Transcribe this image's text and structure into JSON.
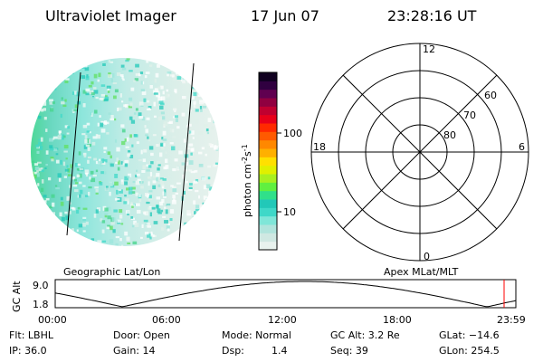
{
  "header": {
    "instrument": "Ultraviolet Imager",
    "date": "17 Jun 07",
    "time": "23:28:16 UT"
  },
  "colorbar": {
    "unit_label": "photon cm",
    "unit_sup1": "-2",
    "unit_mid": "s",
    "unit_sup2": "-1",
    "tick_high": "100",
    "tick_low": "10",
    "colors": [
      "#e8f2ee",
      "#cfe8e2",
      "#b0e4dc",
      "#7fe6d8",
      "#3fd8c8",
      "#22c8b8",
      "#30e08a",
      "#60f040",
      "#a8f020",
      "#e0f000",
      "#ffe000",
      "#ffb000",
      "#ff8800",
      "#ff5a00",
      "#ff2a00",
      "#e8001a",
      "#c00030",
      "#900040",
      "#600050",
      "#300040",
      "#100020"
    ]
  },
  "image_panel": {
    "caption": "Geographic Lat/Lon"
  },
  "polar_plot": {
    "caption": "Apex MLat/MLT",
    "mlt_top": "12",
    "mlt_bottom": "0",
    "mlt_left": "18",
    "mlt_right": "6",
    "lat_labels": [
      "60",
      "70",
      "80"
    ]
  },
  "timeline": {
    "ylabel": "GC Alt",
    "y_top": "9.0",
    "y_bottom": "1.8",
    "x_ticks": [
      "00:00",
      "06:00",
      "12:00",
      "18:00",
      "23:59"
    ],
    "current_marker_color": "#ff0000"
  },
  "status": {
    "flt": "Flt: LBHL",
    "door": "Door: Open",
    "mode": "Mode: Normal",
    "gc_alt": "GC Alt: 3.2 Re",
    "glat": "GLat: −14.6",
    "ip": "IP: 36.0",
    "gain": "Gain: 14",
    "dsp_label": "Dsp:",
    "dsp_value": "1.4",
    "seq": "Seq: 39",
    "glon": "GLon: 254.5"
  }
}
